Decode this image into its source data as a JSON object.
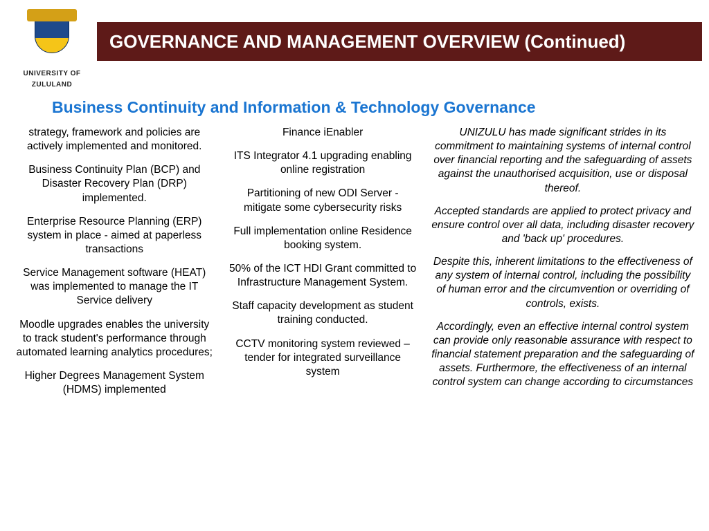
{
  "logo": {
    "line1": "UNIVERSITY OF",
    "line2": "ZULULAND"
  },
  "header": {
    "title": "GOVERNANCE AND MANAGEMENT OVERVIEW (Continued)",
    "bg_color": "#5e1a18",
    "text_color": "#ffffff"
  },
  "subtitle": {
    "text": "Business Continuity and Information & Technology Governance",
    "color": "#1a75d1"
  },
  "col1": [
    "strategy, framework and policies are actively implemented and monitored.",
    "Business Continuity Plan (BCP) and Disaster Recovery Plan (DRP) implemented.",
    "Enterprise Resource Planning (ERP) system in place - aimed at paperless transactions",
    "Service Management software (HEAT) was implemented to manage the IT Service delivery",
    "Moodle upgrades enables the university to track student's performance through automated learning analytics procedures;",
    "Higher Degrees Management System (HDMS) implemented"
  ],
  "col2": [
    "Finance iEnabler",
    "ITS Integrator 4.1 upgrading enabling online registration",
    "Partitioning of  new ODI Server - mitigate some cybersecurity risks",
    "Full implementation online Residence booking system.",
    "50% of the ICT HDI Grant committed to Infrastructure Management System.",
    "Staff capacity development as student training conducted.",
    "CCTV monitoring system reviewed – tender for integrated surveillance system"
  ],
  "col3": [
    "UNIZULU has made significant strides in its commitment to maintaining systems of internal control over financial reporting and the safeguarding of assets against the unauthorised acquisition, use or disposal thereof.",
    "Accepted standards are applied to protect privacy and ensure control over all data, including disaster recovery and 'back up' procedures.",
    "Despite this, inherent limitations to the effectiveness of any system of internal control, including the possibility of human error and the circumvention or overriding of controls, exists.",
    "Accordingly, even an effective internal control system can provide only reasonable assurance with respect to financial statement preparation and the safeguarding of assets. Furthermore, the effectiveness of an internal control system can change according to circumstances"
  ]
}
